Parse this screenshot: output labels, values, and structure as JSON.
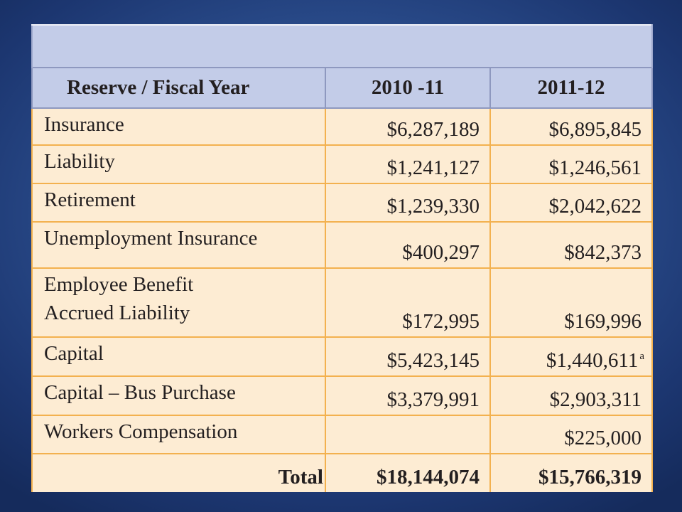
{
  "table": {
    "headers": [
      "Reserve / Fiscal Year",
      "2010 -11",
      "2011-12"
    ],
    "rows": [
      {
        "label": "Insurance",
        "fy2010_11": "$6,287,189",
        "fy2011_12": "$6,895,845"
      },
      {
        "label": "Liability",
        "fy2010_11": "$1,241,127",
        "fy2011_12": "$1,246,561"
      },
      {
        "label": "Retirement",
        "fy2010_11": "$1,239,330",
        "fy2011_12": "$2,042,622"
      },
      {
        "label": "Unemployment Insurance",
        "fy2010_11": "$400,297",
        "fy2011_12": "$842,373"
      },
      {
        "label_line1": "Employee Benefit",
        "label_line2": "Accrued Liability",
        "fy2010_11": "$172,995",
        "fy2011_12": "$169,996"
      },
      {
        "label": "Capital",
        "fy2010_11": "$5,423,145",
        "fy2011_12": "$1,440,611",
        "fy2011_12_note": "a"
      },
      {
        "label": "Capital – Bus Purchase",
        "fy2010_11": "$3,379,991",
        "fy2011_12": "$2,903,311"
      },
      {
        "label": "Workers Compensation",
        "fy2010_11": "",
        "fy2011_12": "$225,000"
      }
    ],
    "total": {
      "label": "Total",
      "fy2010_11": "$18,144,074",
      "fy2011_12": "$15,766,319"
    }
  },
  "colors": {
    "background": "#2c4f8f",
    "header_fill": "#c3cce8",
    "body_fill": "#fdecd3",
    "grid_line": "#f3b14f"
  }
}
